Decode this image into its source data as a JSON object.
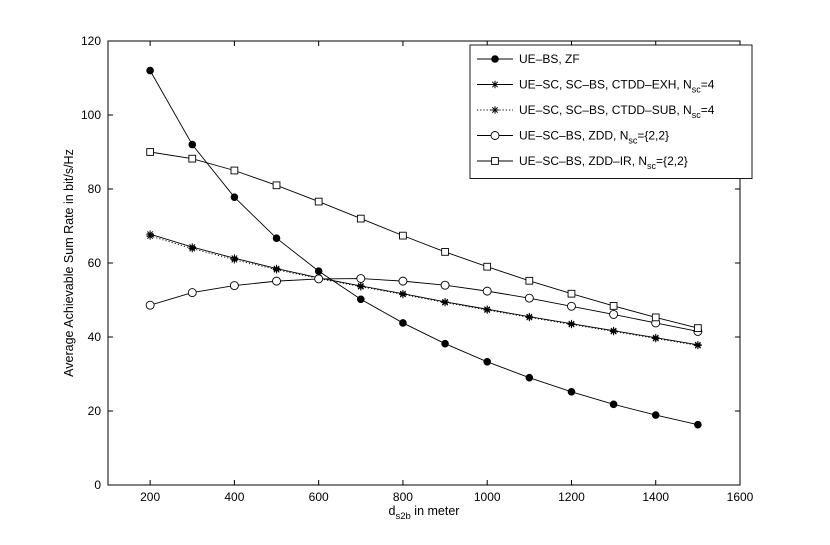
{
  "chart_data": {
    "type": "line",
    "xlabel": {
      "main": "d",
      "sub": "s2b",
      "rest": " in meter"
    },
    "ylabel": "Average Achievable Sum Rate in bit/s/Hz",
    "xlim": [
      100,
      1600
    ],
    "ylim": [
      0,
      120
    ],
    "xticks": [
      200,
      400,
      600,
      800,
      1000,
      1200,
      1400,
      1600
    ],
    "yticks": [
      0,
      20,
      40,
      60,
      80,
      100,
      120
    ],
    "grid": false,
    "legend_position": "top-right",
    "x": [
      200,
      300,
      400,
      500,
      600,
      700,
      800,
      900,
      1000,
      1100,
      1200,
      1300,
      1400,
      1500
    ],
    "series": [
      {
        "name": "UE-BS, ZF",
        "legend_parts": [
          {
            "t": "UE–BS, ZF"
          }
        ],
        "marker": "filled-circle",
        "line": "solid",
        "color": "#000000",
        "values": [
          112,
          92,
          77.8,
          66.7,
          57.8,
          50.2,
          43.8,
          38.2,
          33.3,
          29,
          25.2,
          21.8,
          18.9,
          16.3
        ]
      },
      {
        "name": "UE-SC, SC-BS, CTDD-EXH, Nsc=4",
        "legend_parts": [
          {
            "t": "UE–SC, SC–BS, CTDD–EXH, N"
          },
          {
            "t": "sc",
            "sub": true
          },
          {
            "t": "=4"
          }
        ],
        "marker": "asterisk",
        "line": "solid",
        "color": "#000000",
        "values": [
          67.8,
          64.3,
          61.3,
          58.5,
          56,
          53.8,
          51.7,
          49.5,
          47.5,
          45.5,
          43.6,
          41.7,
          39.8,
          37.9
        ]
      },
      {
        "name": "UE-SC, SC-BS, CTDD-SUB, Nsc=4",
        "legend_parts": [
          {
            "t": "UE–SC, SC–BS, CTDD–SUB, N"
          },
          {
            "t": "sc",
            "sub": true
          },
          {
            "t": "=4"
          }
        ],
        "marker": "asterisk",
        "line": "dotted",
        "color": "#000000",
        "values": [
          67.3,
          63.9,
          60.9,
          58.2,
          55.8,
          53.6,
          51.5,
          49.3,
          47.3,
          45.3,
          43.4,
          41.5,
          39.6,
          37.7
        ]
      },
      {
        "name": "UE-SC-BS, ZDD, Nsc={2,2}",
        "legend_parts": [
          {
            "t": "UE–SC–BS, ZDD, N"
          },
          {
            "t": "sc",
            "sub": true
          },
          {
            "t": "={2,2}"
          }
        ],
        "marker": "open-circle",
        "line": "solid",
        "color": "#000000",
        "values": [
          48.6,
          52,
          53.9,
          55.1,
          55.7,
          55.8,
          55.1,
          54,
          52.4,
          50.5,
          48.3,
          46.1,
          43.8,
          41.5
        ]
      },
      {
        "name": "UE-SC-BS, ZDD-IR, Nsc={2,2}",
        "legend_parts": [
          {
            "t": "UE–SC–BS, ZDD–IR, N"
          },
          {
            "t": "sc",
            "sub": true
          },
          {
            "t": "={2,2}"
          }
        ],
        "marker": "open-square",
        "line": "solid",
        "color": "#000000",
        "values": [
          90,
          88.2,
          85,
          81,
          76.6,
          72,
          67.4,
          63,
          59,
          55.2,
          51.7,
          48.4,
          45.3,
          42.4
        ]
      }
    ]
  }
}
